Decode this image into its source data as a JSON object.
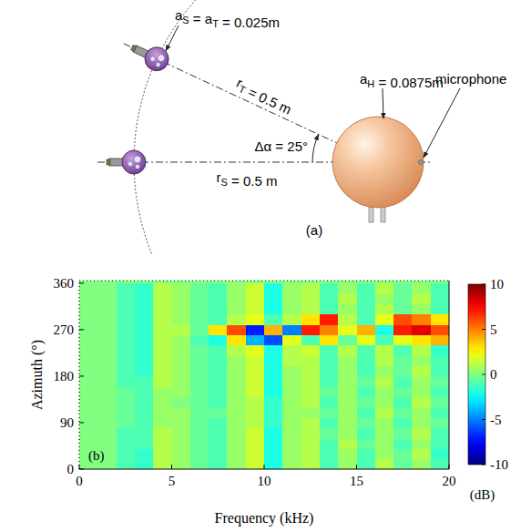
{
  "diagram": {
    "panel": "(a)",
    "angle": 25,
    "labels": [
      {
        "text": [
          "a",
          {
            "sub": "S"
          },
          " = a",
          {
            "sub": "T"
          },
          " = 0.025m"
        ]
      },
      {
        "text": [
          "a",
          {
            "sub": "H"
          },
          " = 0.0875m"
        ]
      },
      {
        "text": [
          "r",
          {
            "sub": "T"
          },
          " = 0.5 m"
        ]
      },
      {
        "text": [
          "Δα = 25°"
        ]
      },
      {
        "text": [
          "r",
          {
            "sub": "S"
          },
          " = 0.5 m"
        ]
      },
      {
        "text": [
          "microphone"
        ]
      }
    ]
  },
  "chart_data": {
    "type": "heatmap",
    "panel": "(b)",
    "x_label": "Frequency (kHz)",
    "y_label": "Azimuth (°)",
    "xlim": [
      0,
      20
    ],
    "xticks": [
      0,
      5,
      10,
      15,
      20
    ],
    "ylim": [
      0,
      365
    ],
    "yticks": [
      0,
      90,
      180,
      270,
      360
    ],
    "grid": false,
    "x_bins": [
      0,
      1,
      2,
      3,
      4,
      5,
      6,
      7,
      8,
      9,
      10,
      11,
      12,
      13,
      14,
      15,
      16,
      17,
      18,
      19,
      20
    ],
    "y_bins": [
      0,
      20,
      40,
      60,
      80,
      100,
      120,
      140,
      160,
      180,
      200,
      220,
      240,
      260,
      280,
      300,
      320,
      340,
      360
    ],
    "cells": [
      [
        0,
        0,
        -1,
        -1.5,
        1,
        0.5,
        -0.5,
        -1,
        0.5,
        1.5,
        -2,
        0.5,
        1,
        -1,
        0.5,
        -1,
        1,
        -0.5,
        0.5,
        -1
      ],
      [
        0,
        0,
        -1,
        -1.5,
        1,
        0.5,
        -0.5,
        -1,
        0.5,
        1.5,
        -2,
        0.5,
        1,
        -1,
        0.5,
        -1,
        0.5,
        -0.5,
        1,
        -1.5
      ],
      [
        0,
        0,
        -1,
        -1,
        1,
        0.5,
        -0.5,
        -1,
        0.5,
        1.5,
        -2,
        0.5,
        1,
        -1,
        1,
        -0.5,
        0.5,
        -1,
        0.5,
        -1
      ],
      [
        0,
        0,
        -1,
        -1,
        1,
        0.5,
        -0.5,
        -1,
        0.5,
        1.5,
        -2,
        0.5,
        1,
        -0.5,
        0.5,
        -1,
        0.5,
        -0.5,
        1,
        -1
      ],
      [
        0,
        0,
        -0.5,
        -1,
        0.5,
        0.5,
        -0.5,
        -1,
        0.5,
        1,
        -1.5,
        0.5,
        1,
        -1,
        0.5,
        -0.5,
        0.5,
        -1,
        0.5,
        -0.5
      ],
      [
        0,
        0,
        -0.5,
        -1,
        0.5,
        0.5,
        -0.5,
        -0.5,
        0.5,
        1,
        -1.5,
        0.5,
        0.5,
        -0.5,
        0.5,
        -1,
        1,
        -0.5,
        0.5,
        -1
      ],
      [
        0,
        0,
        -0.5,
        -1,
        0.5,
        0,
        -0.5,
        -1,
        0.5,
        1,
        -1.5,
        0.5,
        1,
        -1,
        0.5,
        -0.5,
        0.5,
        -1,
        1,
        -0.5
      ],
      [
        0,
        0,
        -0.5,
        -1,
        0.5,
        0.5,
        -0.5,
        -1,
        0.5,
        1.5,
        -2,
        0.5,
        1,
        -0.5,
        0.5,
        -1,
        0.5,
        -0.5,
        0.5,
        -1
      ],
      [
        0,
        0,
        -1,
        -1,
        1,
        0.5,
        -0.5,
        -1,
        0.5,
        1.5,
        -2,
        0.5,
        1,
        -1,
        0.5,
        -0.5,
        1,
        -1,
        0.5,
        -0.5
      ],
      [
        0,
        0,
        -1,
        -1.5,
        1,
        0.5,
        -0.5,
        -1,
        0.5,
        1.5,
        -2,
        0.5,
        1,
        -1,
        0.5,
        -1,
        0.5,
        -0.5,
        1,
        -1
      ],
      [
        0,
        0,
        -1,
        -1.5,
        1,
        0.5,
        -0.5,
        -1,
        0.5,
        1.5,
        -2,
        1,
        1,
        -1,
        0.5,
        -1,
        1,
        -0.5,
        0.5,
        -1
      ],
      [
        0,
        0,
        -1,
        -1.5,
        1,
        0.5,
        -0.5,
        -1,
        1,
        2,
        -2,
        1,
        1.5,
        -1,
        1,
        -1,
        1,
        -1,
        1,
        -1.5
      ],
      [
        0,
        0,
        -1,
        -1.5,
        1,
        0.5,
        -1,
        -2,
        3,
        -4,
        -6,
        2,
        -1,
        3,
        -0.5,
        2,
        -1,
        2,
        3,
        4
      ],
      [
        0,
        0,
        -1,
        -1.5,
        1,
        1,
        -0.5,
        3,
        6,
        -7,
        4,
        -5,
        7,
        5,
        2,
        4,
        -2,
        7,
        8,
        6
      ],
      [
        0,
        0,
        -1,
        -1.5,
        1,
        0.5,
        -0.5,
        -1,
        1,
        2,
        -1,
        1,
        3,
        7,
        1,
        -1,
        2,
        6,
        5,
        3
      ],
      [
        0,
        0,
        -1,
        -1.5,
        1,
        0.5,
        -0.5,
        -1,
        0.5,
        1.5,
        -2,
        0.5,
        1,
        -1,
        0.5,
        -1,
        1,
        -0.5,
        0.5,
        -1
      ],
      [
        0,
        0,
        -1,
        -1.5,
        1,
        0.5,
        -0.5,
        -1,
        0.5,
        1.5,
        -2,
        0.5,
        1,
        -1,
        1,
        -1,
        0.5,
        -0.5,
        1,
        -1
      ],
      [
        0,
        0,
        -1,
        -1.5,
        1,
        0.5,
        -0.5,
        -1,
        0.5,
        1.5,
        -2,
        0.5,
        1,
        -1,
        0.5,
        -1,
        1,
        -0.5,
        0.5,
        -1
      ]
    ],
    "colorbar": {
      "range": [
        -10,
        10
      ],
      "ticks": [
        10,
        5,
        0,
        -5,
        -10
      ],
      "label": "(dB)"
    }
  }
}
